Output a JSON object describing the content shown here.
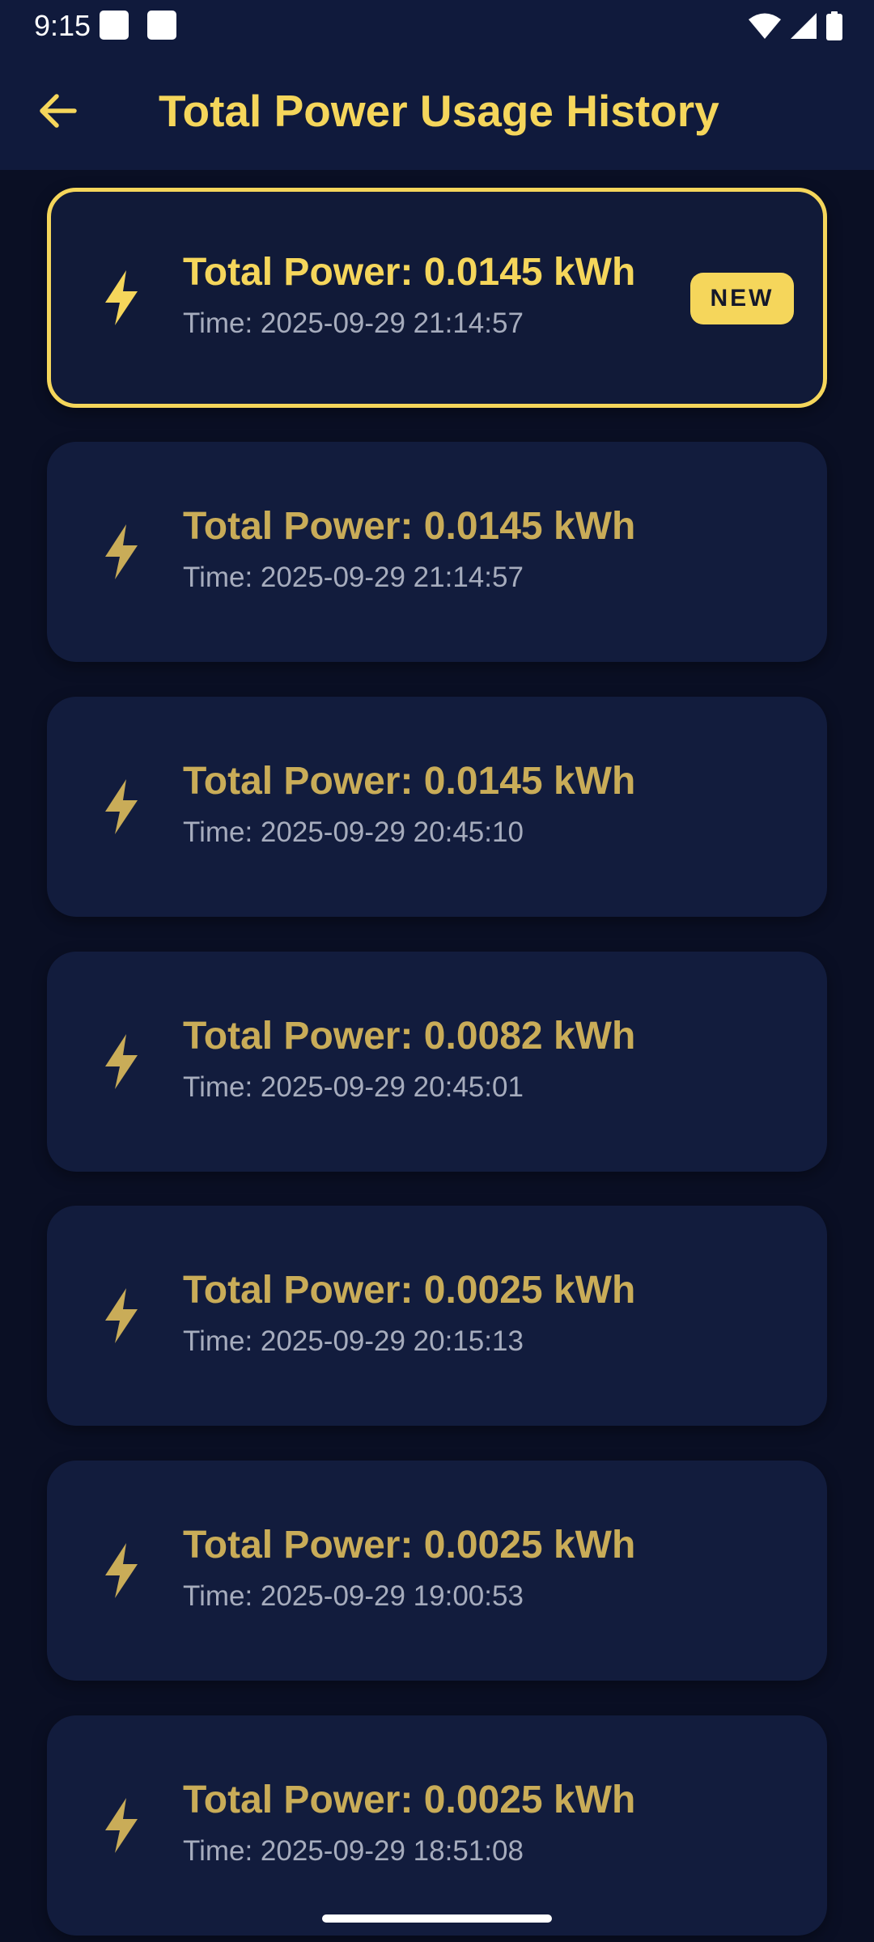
{
  "status_bar": {
    "time": "9:15",
    "icons": [
      "notification-square-icon",
      "notification-square-icon",
      "wifi-icon",
      "cell-signal-icon",
      "battery-icon"
    ]
  },
  "app_bar": {
    "back_icon": "arrow-left-icon",
    "title": "Total Power Usage History"
  },
  "colors": {
    "accent": "#f5d65b",
    "accent_muted": "#c9ac58",
    "card_bg": "#121c3d",
    "page_bg": "#0a0f24",
    "bar_bg": "#101a3c",
    "secondary_text": "#a6acbd"
  },
  "history": {
    "badge_label": "NEW",
    "items": [
      {
        "power": "Total Power: 0.0145 kWh",
        "time": "Time: 2025-09-29 21:14:57",
        "is_new": true
      },
      {
        "power": "Total Power: 0.0145 kWh",
        "time": "Time: 2025-09-29 21:14:57",
        "is_new": false
      },
      {
        "power": "Total Power: 0.0145 kWh",
        "time": "Time: 2025-09-29 20:45:10",
        "is_new": false
      },
      {
        "power": "Total Power: 0.0082 kWh",
        "time": "Time: 2025-09-29 20:45:01",
        "is_new": false
      },
      {
        "power": "Total Power: 0.0025 kWh",
        "time": "Time: 2025-09-29 20:15:13",
        "is_new": false
      },
      {
        "power": "Total Power: 0.0025 kWh",
        "time": "Time: 2025-09-29 19:00:53",
        "is_new": false
      },
      {
        "power": "Total Power: 0.0025 kWh",
        "time": "Time: 2025-09-29 18:51:08",
        "is_new": false
      }
    ]
  }
}
